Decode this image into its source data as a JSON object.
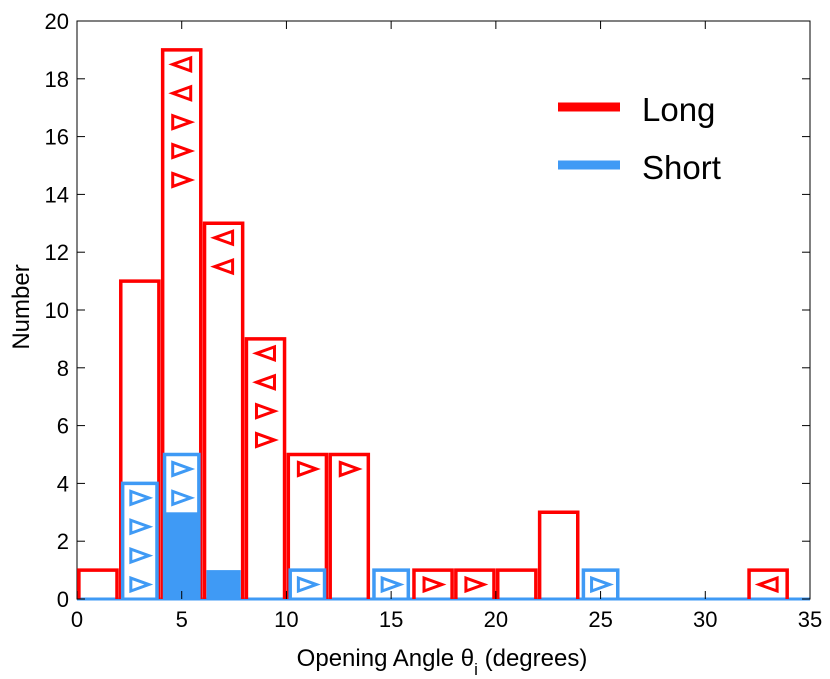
{
  "chart_data": {
    "type": "bar",
    "title": "",
    "xlabel": "Opening Angle θ",
    "xlabel_sub": "i",
    "xlabel_suffix": " (degrees)",
    "ylabel": "Number",
    "xlim": [
      0,
      35
    ],
    "ylim": [
      0,
      20
    ],
    "xticks": [
      0,
      5,
      10,
      15,
      20,
      25,
      30,
      35
    ],
    "yticks": [
      0,
      2,
      4,
      6,
      8,
      10,
      12,
      14,
      16,
      18,
      20
    ],
    "grid": false,
    "legend_position": "top-right",
    "bin_width": 2,
    "series": [
      {
        "name": "Long",
        "color": "#ff0000",
        "style": "outline",
        "bins": [
          {
            "x0": 0,
            "count": 1,
            "lower_limits": 0,
            "upper_limits": 0
          },
          {
            "x0": 2,
            "count": 11,
            "lower_limits": 0,
            "upper_limits": 0
          },
          {
            "x0": 4,
            "count": 19,
            "lower_limits": 3,
            "upper_limits": 2
          },
          {
            "x0": 6,
            "count": 13,
            "lower_limits": 0,
            "upper_limits": 2
          },
          {
            "x0": 8,
            "count": 9,
            "lower_limits": 2,
            "upper_limits": 2
          },
          {
            "x0": 10,
            "count": 5,
            "lower_limits": 1,
            "upper_limits": 0
          },
          {
            "x0": 12,
            "count": 5,
            "lower_limits": 1,
            "upper_limits": 0
          },
          {
            "x0": 16,
            "count": 1,
            "lower_limits": 1,
            "upper_limits": 0
          },
          {
            "x0": 18,
            "count": 1,
            "lower_limits": 1,
            "upper_limits": 0
          },
          {
            "x0": 20,
            "count": 1,
            "lower_limits": 0,
            "upper_limits": 0
          },
          {
            "x0": 22,
            "count": 3,
            "lower_limits": 0,
            "upper_limits": 0
          },
          {
            "x0": 32,
            "count": 1,
            "lower_limits": 0,
            "upper_limits": 1
          }
        ]
      },
      {
        "name": "Short",
        "color": "#3f9af5",
        "style": "outline",
        "bins": [
          {
            "x0": 2,
            "count": 4,
            "filled": 0,
            "lower_limits": 4
          },
          {
            "x0": 4,
            "count": 5,
            "filled": 3,
            "lower_limits": 2
          },
          {
            "x0": 6,
            "count": 1,
            "filled": 1,
            "lower_limits": 0
          },
          {
            "x0": 10,
            "count": 1,
            "filled": 0,
            "lower_limits": 1
          },
          {
            "x0": 14,
            "count": 1,
            "filled": 0,
            "lower_limits": 1
          },
          {
            "x0": 24,
            "count": 1,
            "filled": 0,
            "lower_limits": 1
          }
        ]
      }
    ],
    "legend": [
      {
        "label": "Long",
        "color": "#ff0000"
      },
      {
        "label": "Short",
        "color": "#3f9af5"
      }
    ]
  }
}
